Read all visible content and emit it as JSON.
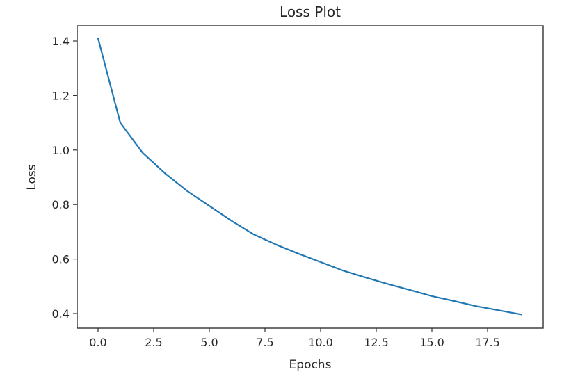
{
  "chart_data": {
    "type": "line",
    "title": "Loss Plot",
    "xlabel": "Epochs",
    "ylabel": "Loss",
    "xlim": [
      -0.95,
      20.0
    ],
    "ylim": [
      0.345,
      1.455
    ],
    "grid": false,
    "legend": null,
    "x_ticks": [
      0.0,
      2.5,
      5.0,
      7.5,
      10.0,
      12.5,
      15.0,
      17.5
    ],
    "x_tick_labels": [
      "0.0",
      "2.5",
      "5.0",
      "7.5",
      "10.0",
      "12.5",
      "15.0",
      "17.5"
    ],
    "y_ticks": [
      0.4,
      0.6,
      0.8,
      1.0,
      1.2,
      1.4
    ],
    "y_tick_labels": [
      "0.4",
      "0.6",
      "0.8",
      "1.0",
      "1.2",
      "1.4"
    ],
    "x": [
      0,
      1,
      2,
      3,
      4,
      5,
      6,
      7,
      8,
      9,
      10,
      11,
      12,
      13,
      14,
      15,
      16,
      17,
      18,
      19
    ],
    "series": [
      {
        "name": "loss",
        "color": "#1f77b4",
        "values": [
          1.41,
          1.1,
          0.99,
          0.915,
          0.85,
          0.795,
          0.74,
          0.69,
          0.653,
          0.62,
          0.589,
          0.558,
          0.533,
          0.509,
          0.487,
          0.464,
          0.446,
          0.427,
          0.412,
          0.397
        ]
      }
    ]
  }
}
